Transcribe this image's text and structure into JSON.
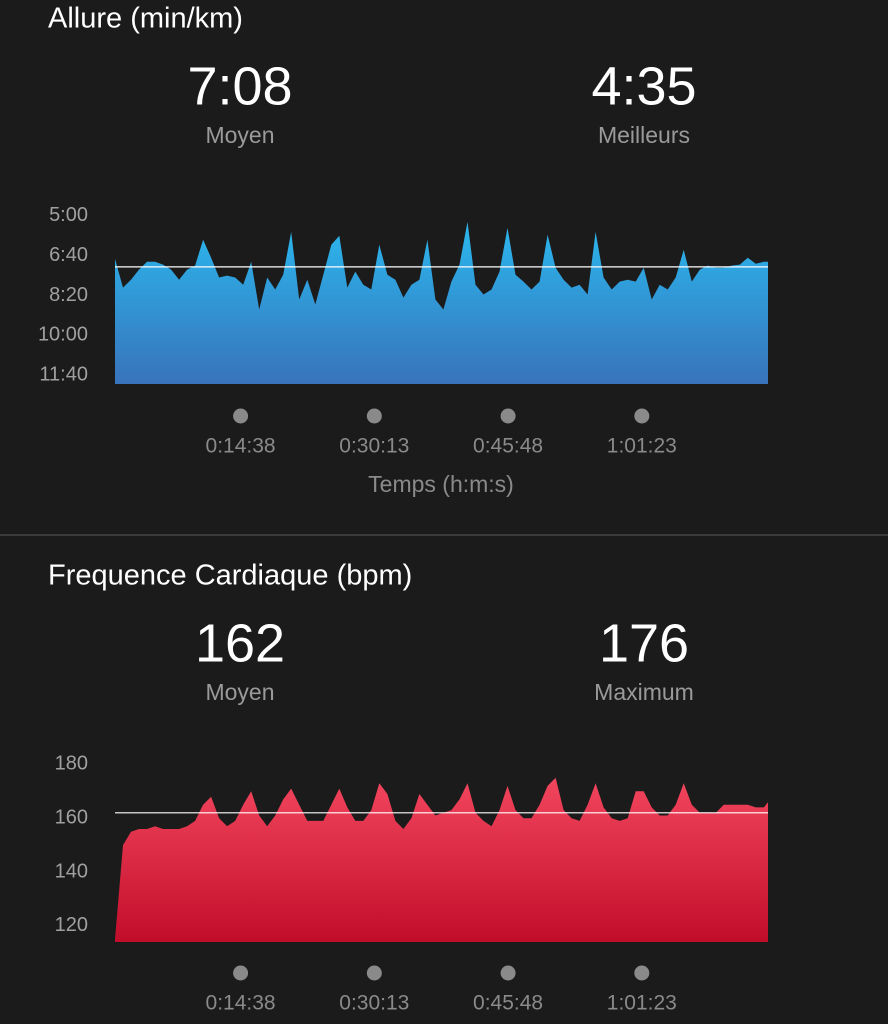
{
  "chart_data": [
    {
      "type": "area",
      "title": "Allure (min/km)",
      "stats": [
        {
          "value": 7.1333,
          "label": "7:08",
          "name": "Moyen"
        },
        {
          "label": "4:35",
          "name": "Meilleurs"
        }
      ],
      "x": [
        0,
        56,
        112,
        168,
        224,
        280,
        336,
        392,
        448,
        504,
        560,
        616,
        672,
        728,
        784,
        840,
        896,
        952,
        1008,
        1064,
        1120,
        1176,
        1232,
        1288,
        1344,
        1400,
        1456,
        1512,
        1568,
        1624,
        1680,
        1736,
        1792,
        1848,
        1904,
        1960,
        2016,
        2072,
        2128,
        2184,
        2240,
        2296,
        2352,
        2408,
        2464,
        2520,
        2576,
        2632,
        2688,
        2744,
        2800,
        2856,
        2912,
        2968,
        3024,
        3080,
        3136,
        3192,
        3248,
        3304,
        3360,
        3416,
        3472,
        3528,
        3584,
        3640,
        3696,
        3752,
        3808,
        3864,
        3920,
        3976,
        4032,
        4088,
        4144,
        4200,
        4256,
        4312,
        4368,
        4424,
        4480,
        4536,
        4565
      ],
      "values": [
        6.8,
        8.0,
        7.67,
        7.25,
        6.92,
        6.92,
        7.04,
        7.25,
        7.67,
        7.25,
        7.08,
        6.0,
        6.75,
        7.58,
        7.5,
        7.58,
        7.88,
        6.92,
        8.92,
        7.58,
        8.08,
        7.46,
        5.67,
        8.5,
        7.67,
        8.71,
        7.46,
        6.21,
        5.83,
        8.0,
        7.33,
        7.88,
        8.08,
        6.21,
        7.46,
        7.67,
        8.42,
        7.88,
        7.67,
        6.0,
        8.5,
        8.92,
        7.75,
        7.04,
        5.25,
        7.88,
        8.29,
        8.08,
        7.33,
        5.5,
        7.46,
        7.75,
        8.08,
        7.75,
        5.79,
        7.17,
        7.67,
        8.0,
        7.88,
        8.29,
        5.67,
        7.58,
        8.08,
        7.75,
        7.67,
        7.75,
        7.17,
        8.5,
        7.88,
        8.08,
        7.58,
        6.42,
        7.75,
        7.25,
        7.08,
        7.17,
        7.17,
        7.08,
        7.04,
        6.75,
        7.0,
        6.92,
        6.92
      ],
      "colors": [
        "#2bb8ee",
        "#3873bb"
      ],
      "xlim": [
        0,
        4565
      ],
      "xticks": [
        {
          "value": 878,
          "label": "0:14:38"
        },
        {
          "value": 1813,
          "label": "0:30:13"
        },
        {
          "value": 2748,
          "label": "0:45:48"
        },
        {
          "value": 3683,
          "label": "1:01:23"
        }
      ],
      "xlabel": "Temps (h:m:s)",
      "ylim": [
        12.04,
        4.5
      ],
      "yticks": [
        {
          "value": 5,
          "label": "5:00"
        },
        {
          "value": 6.6667,
          "label": "6:40"
        },
        {
          "value": 8.3333,
          "label": "8:20"
        },
        {
          "value": 10,
          "label": "10:00"
        },
        {
          "value": 11.6667,
          "label": "11:40"
        }
      ]
    },
    {
      "type": "area",
      "title": "Frequence Cardiaque (bpm)",
      "stats": [
        {
          "value": 162,
          "name": "Moyen"
        },
        {
          "value": 176,
          "name": "Maximum"
        }
      ],
      "x": [
        0,
        56,
        112,
        168,
        224,
        280,
        336,
        392,
        448,
        504,
        560,
        616,
        672,
        728,
        784,
        840,
        896,
        952,
        1008,
        1064,
        1120,
        1176,
        1232,
        1288,
        1344,
        1400,
        1456,
        1512,
        1568,
        1624,
        1680,
        1736,
        1792,
        1848,
        1904,
        1960,
        2016,
        2072,
        2128,
        2184,
        2240,
        2296,
        2352,
        2408,
        2464,
        2520,
        2576,
        2632,
        2688,
        2744,
        2800,
        2856,
        2912,
        2968,
        3024,
        3080,
        3136,
        3192,
        3248,
        3304,
        3360,
        3416,
        3472,
        3528,
        3584,
        3640,
        3696,
        3752,
        3808,
        3864,
        3920,
        3976,
        4032,
        4088,
        4144,
        4200,
        4256,
        4312,
        4368,
        4424,
        4480,
        4536,
        4565
      ],
      "values": [
        115,
        150,
        155,
        156,
        156,
        157,
        156,
        156,
        156,
        157,
        159,
        165,
        168,
        160,
        157,
        159,
        165,
        170,
        161,
        157,
        161,
        167,
        171,
        165,
        159,
        159,
        159,
        165,
        171,
        164,
        159,
        159,
        163,
        173,
        169,
        159,
        156,
        160,
        169,
        165,
        161,
        162,
        163,
        167,
        173,
        162,
        159,
        157,
        163,
        172,
        163,
        160,
        160,
        165,
        172,
        175,
        163,
        160,
        159,
        165,
        173,
        164,
        160,
        159,
        160,
        170,
        170,
        164,
        161,
        161,
        165,
        173,
        165,
        162,
        162,
        162,
        165,
        165,
        165,
        165,
        164,
        164,
        166
      ],
      "colors": [
        "#f2465e",
        "#c20d2a"
      ],
      "xlim": [
        0,
        4565
      ],
      "xticks": [
        {
          "value": 878,
          "label": "0:14:38"
        },
        {
          "value": 1813,
          "label": "0:30:13"
        },
        {
          "value": 2748,
          "label": "0:45:48"
        },
        {
          "value": 3683,
          "label": "1:01:23"
        }
      ],
      "ylim": [
        114,
        182
      ],
      "yticks": [
        120,
        140,
        160,
        180
      ]
    }
  ]
}
